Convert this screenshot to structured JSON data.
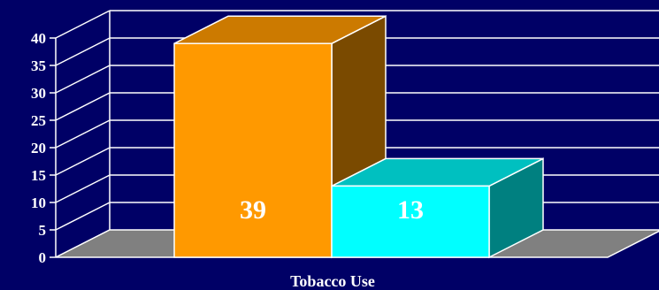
{
  "chart_data": {
    "type": "bar",
    "title": "",
    "xlabel": "Tobacco Use",
    "ylabel": "",
    "ylim": [
      0,
      40
    ],
    "yticks": [
      0,
      5,
      10,
      15,
      20,
      25,
      30,
      35,
      40
    ],
    "three_d": true,
    "grid": true,
    "legend": "none",
    "series": [
      {
        "values": [
          39
        ],
        "data_label": "39",
        "color_front": "#ff9900",
        "color_top": "#cc7a00",
        "color_side": "#7a4a00"
      },
      {
        "values": [
          13
        ],
        "data_label": "13",
        "color_front": "#00ffff",
        "color_top": "#00c0c0",
        "color_side": "#008080"
      }
    ]
  },
  "colors": {
    "background": "#000066",
    "floor": "#808080",
    "grid": "#ffffff",
    "text": "#ffffff"
  }
}
